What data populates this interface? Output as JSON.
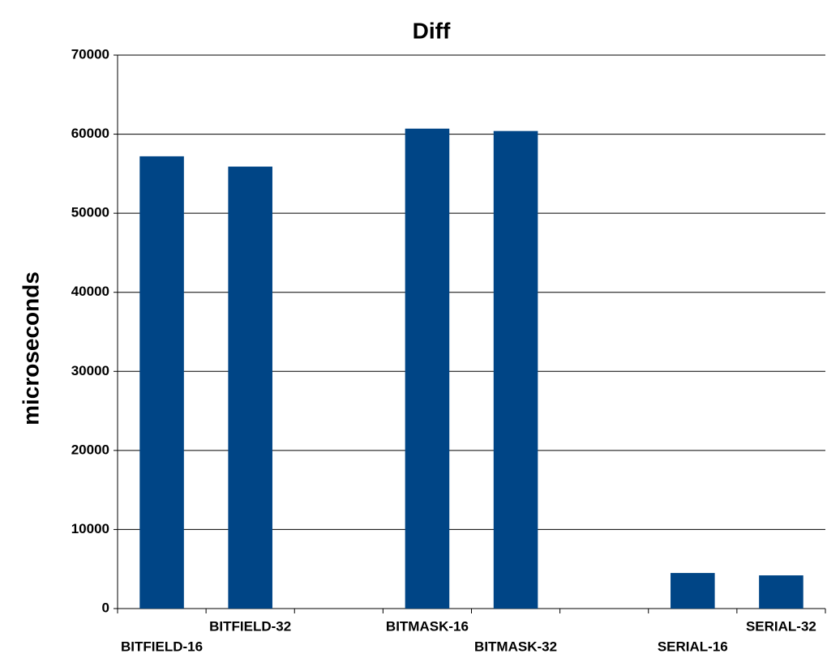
{
  "chart_data": {
    "type": "bar",
    "title": "Diff",
    "y_label": "microseconds",
    "categories": [
      "BITFIELD-16",
      "BITFIELD-32",
      null,
      "BITMASK-16",
      "BITMASK-32",
      null,
      "SERIAL-16",
      "SERIAL-32"
    ],
    "values": [
      57200,
      55900,
      null,
      60700,
      60400,
      null,
      4500,
      4200
    ],
    "color": "#004586",
    "ylim": [
      0,
      70000
    ],
    "yticks": [
      0,
      10000,
      20000,
      30000,
      40000,
      50000,
      60000,
      70000
    ],
    "grid": true
  }
}
